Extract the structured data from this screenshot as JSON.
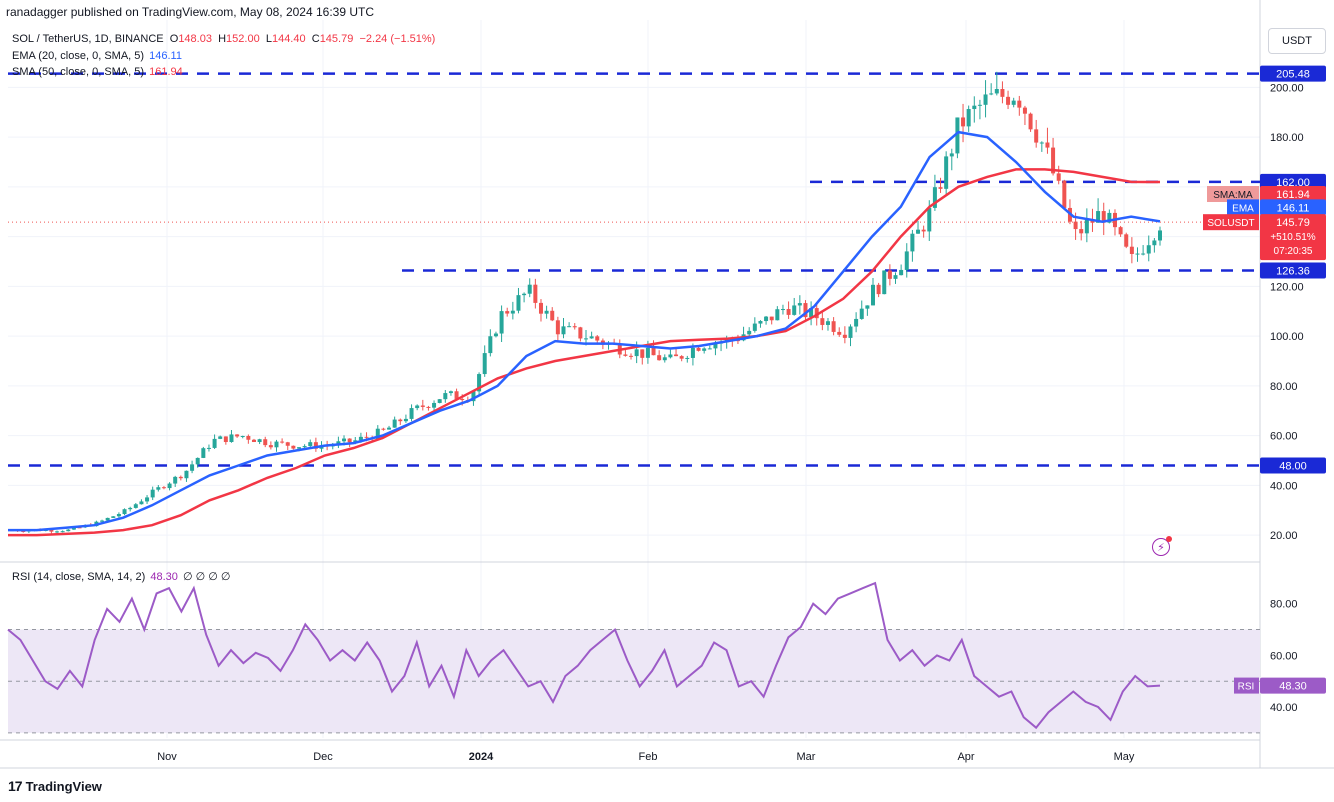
{
  "header": {
    "published": "ranadagger published on TradingView.com, May 08, 2024 16:39 UTC"
  },
  "legend": {
    "symbol": "SOL / TetherUS, 1D, BINANCE",
    "o_label": "O",
    "o": "148.03",
    "h_label": "H",
    "h": "152.00",
    "l_label": "L",
    "l": "144.40",
    "c_label": "C",
    "c": "145.79",
    "change": "−2.24 (−1.51%)",
    "ema_label": "EMA (20, close, 0, SMA, 5)",
    "ema_value": "146.11",
    "sma_label": "SMA (50, close, 0, SMA, 5)",
    "sma_value": "161.94",
    "rsi_label": "RSI (14, close, SMA, 14, 2)",
    "rsi_value": "48.30",
    "rsi_extra": "∅ ∅ ∅ ∅"
  },
  "toolbar": {
    "currency_button": "USDT"
  },
  "branding": {
    "logo_text": "TradingView",
    "logo_mark": "17"
  },
  "colors": {
    "up": "#26a69a",
    "down": "#ef5350",
    "ema": "#2962ff",
    "sma": "#f23645",
    "rsi": "#9c5bc7",
    "level_line": "#1a29d6",
    "rsi_band": "#ede7f6"
  },
  "chart_data": [
    {
      "type": "candlestick",
      "title": "SOL / TetherUS, 1D, BINANCE",
      "ylim": [
        10,
        215
      ],
      "yticks": [
        "200.00",
        "180.00",
        "160.00",
        "140.00",
        "120.00",
        "100.00",
        "80.00",
        "60.00",
        "40.00",
        "20.00"
      ],
      "xticks": [
        "Nov",
        "Dec",
        "2024",
        "Feb",
        "Mar",
        "Apr",
        "May"
      ],
      "horizontal_levels": [
        {
          "value": 205.48,
          "label": "205.48"
        },
        {
          "value": 162.0,
          "label": "162.00"
        },
        {
          "value": 126.36,
          "label": "126.36"
        },
        {
          "value": 48.0,
          "label": "48.00"
        }
      ],
      "price_tags": [
        {
          "name": "SMA:MA",
          "value": "161.94"
        },
        {
          "name": "EMA",
          "value": "146.11"
        },
        {
          "name": "SOLUSDT",
          "value": "145.79",
          "change": "+510.51%",
          "countdown": "07:20:35"
        }
      ],
      "series": [
        {
          "name": "EMA (20, close, 0, SMA, 5)",
          "values": [
            22,
            22,
            23,
            24,
            27,
            32,
            38,
            44,
            48,
            52,
            54,
            56,
            57,
            60,
            65,
            70,
            74,
            80,
            92,
            98,
            97,
            97,
            96,
            95,
            96,
            98,
            100,
            103,
            112,
            126,
            140,
            152,
            172,
            182,
            180,
            170,
            158,
            148,
            146,
            148,
            146.11
          ]
        },
        {
          "name": "SMA (50, close, 0, SMA, 5)",
          "values": [
            20,
            20,
            20.5,
            21,
            22,
            24,
            28,
            34,
            38,
            43,
            47,
            52,
            55,
            59,
            65,
            71,
            77,
            83,
            87,
            90,
            92,
            94,
            96,
            98,
            98.5,
            99,
            100,
            102,
            108,
            115,
            126,
            140,
            152,
            160,
            164,
            167,
            167,
            166,
            164,
            162,
            161.94
          ]
        },
        {
          "name": "Close",
          "values": [
            22,
            22,
            22,
            25,
            30,
            38,
            45,
            58,
            60,
            57,
            56,
            56,
            58,
            62,
            70,
            76,
            76,
            108,
            118,
            103,
            100,
            96,
            93,
            90,
            97,
            98,
            104,
            112,
            108,
            102,
            118,
            130,
            150,
            185,
            195,
            198,
            175,
            140,
            150,
            130,
            145.79
          ]
        }
      ]
    },
    {
      "type": "line",
      "title": "RSI (14, close, SMA, 14, 2)",
      "ylim": [
        28,
        95
      ],
      "yticks": [
        "80.00",
        "60.00",
        "40.00"
      ],
      "bands": [
        30,
        50,
        70
      ],
      "series": [
        {
          "name": "RSI (14, close, SMA, 14, 2)",
          "values": [
            70,
            66,
            58,
            50,
            47,
            54,
            48,
            66,
            78,
            73,
            82,
            70,
            84,
            86,
            77,
            86,
            68,
            56,
            62,
            57,
            61,
            59,
            54,
            62,
            72,
            66,
            58,
            62,
            58,
            65,
            58,
            46,
            52,
            65,
            48,
            56,
            44,
            62,
            52,
            58,
            62,
            55,
            48,
            50,
            42,
            52,
            56,
            62,
            66,
            70,
            58,
            48,
            54,
            62,
            48,
            52,
            56,
            65,
            62,
            48,
            50,
            44,
            56,
            67,
            71,
            80,
            76,
            82,
            84,
            86,
            88,
            66,
            58,
            62,
            56,
            60,
            58,
            66,
            52,
            48,
            44,
            46,
            36,
            32,
            38,
            42,
            46,
            42,
            40,
            35,
            46,
            52,
            48,
            48.3
          ]
        }
      ]
    }
  ]
}
